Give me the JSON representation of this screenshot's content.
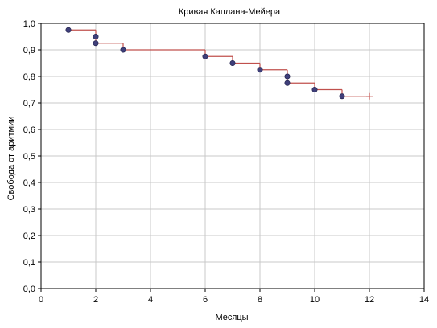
{
  "chart_data": {
    "type": "line",
    "title": "Кривая Каплана-Мейера",
    "xlabel": "Месяцы",
    "ylabel": "Свобода от аритмии",
    "xlim": [
      0,
      14
    ],
    "ylim": [
      0,
      1.0
    ],
    "x_ticks": [
      "0",
      "2",
      "4",
      "6",
      "8",
      "10",
      "12",
      "14"
    ],
    "y_ticks": [
      "0,0",
      "0,1",
      "0,2",
      "0,3",
      "0,4",
      "0,5",
      "0,6",
      "0,7",
      "0,8",
      "0,9",
      "1,0"
    ],
    "grid": true,
    "series": [
      {
        "style": "step",
        "line_color": "#c0504d",
        "marker_color": "#3f3f7a",
        "steps": [
          {
            "x": 1,
            "y": 0.975
          },
          {
            "x": 2,
            "y": 0.95
          },
          {
            "x": 2,
            "y": 0.925
          },
          {
            "x": 3,
            "y": 0.9
          },
          {
            "x": 6,
            "y": 0.875
          },
          {
            "x": 7,
            "y": 0.85
          },
          {
            "x": 8,
            "y": 0.825
          },
          {
            "x": 9,
            "y": 0.8
          },
          {
            "x": 9,
            "y": 0.775
          },
          {
            "x": 10,
            "y": 0.75
          },
          {
            "x": 11,
            "y": 0.725
          }
        ],
        "end_x": 12,
        "censored": [
          {
            "x": 12,
            "y": 0.725
          }
        ]
      }
    ]
  }
}
